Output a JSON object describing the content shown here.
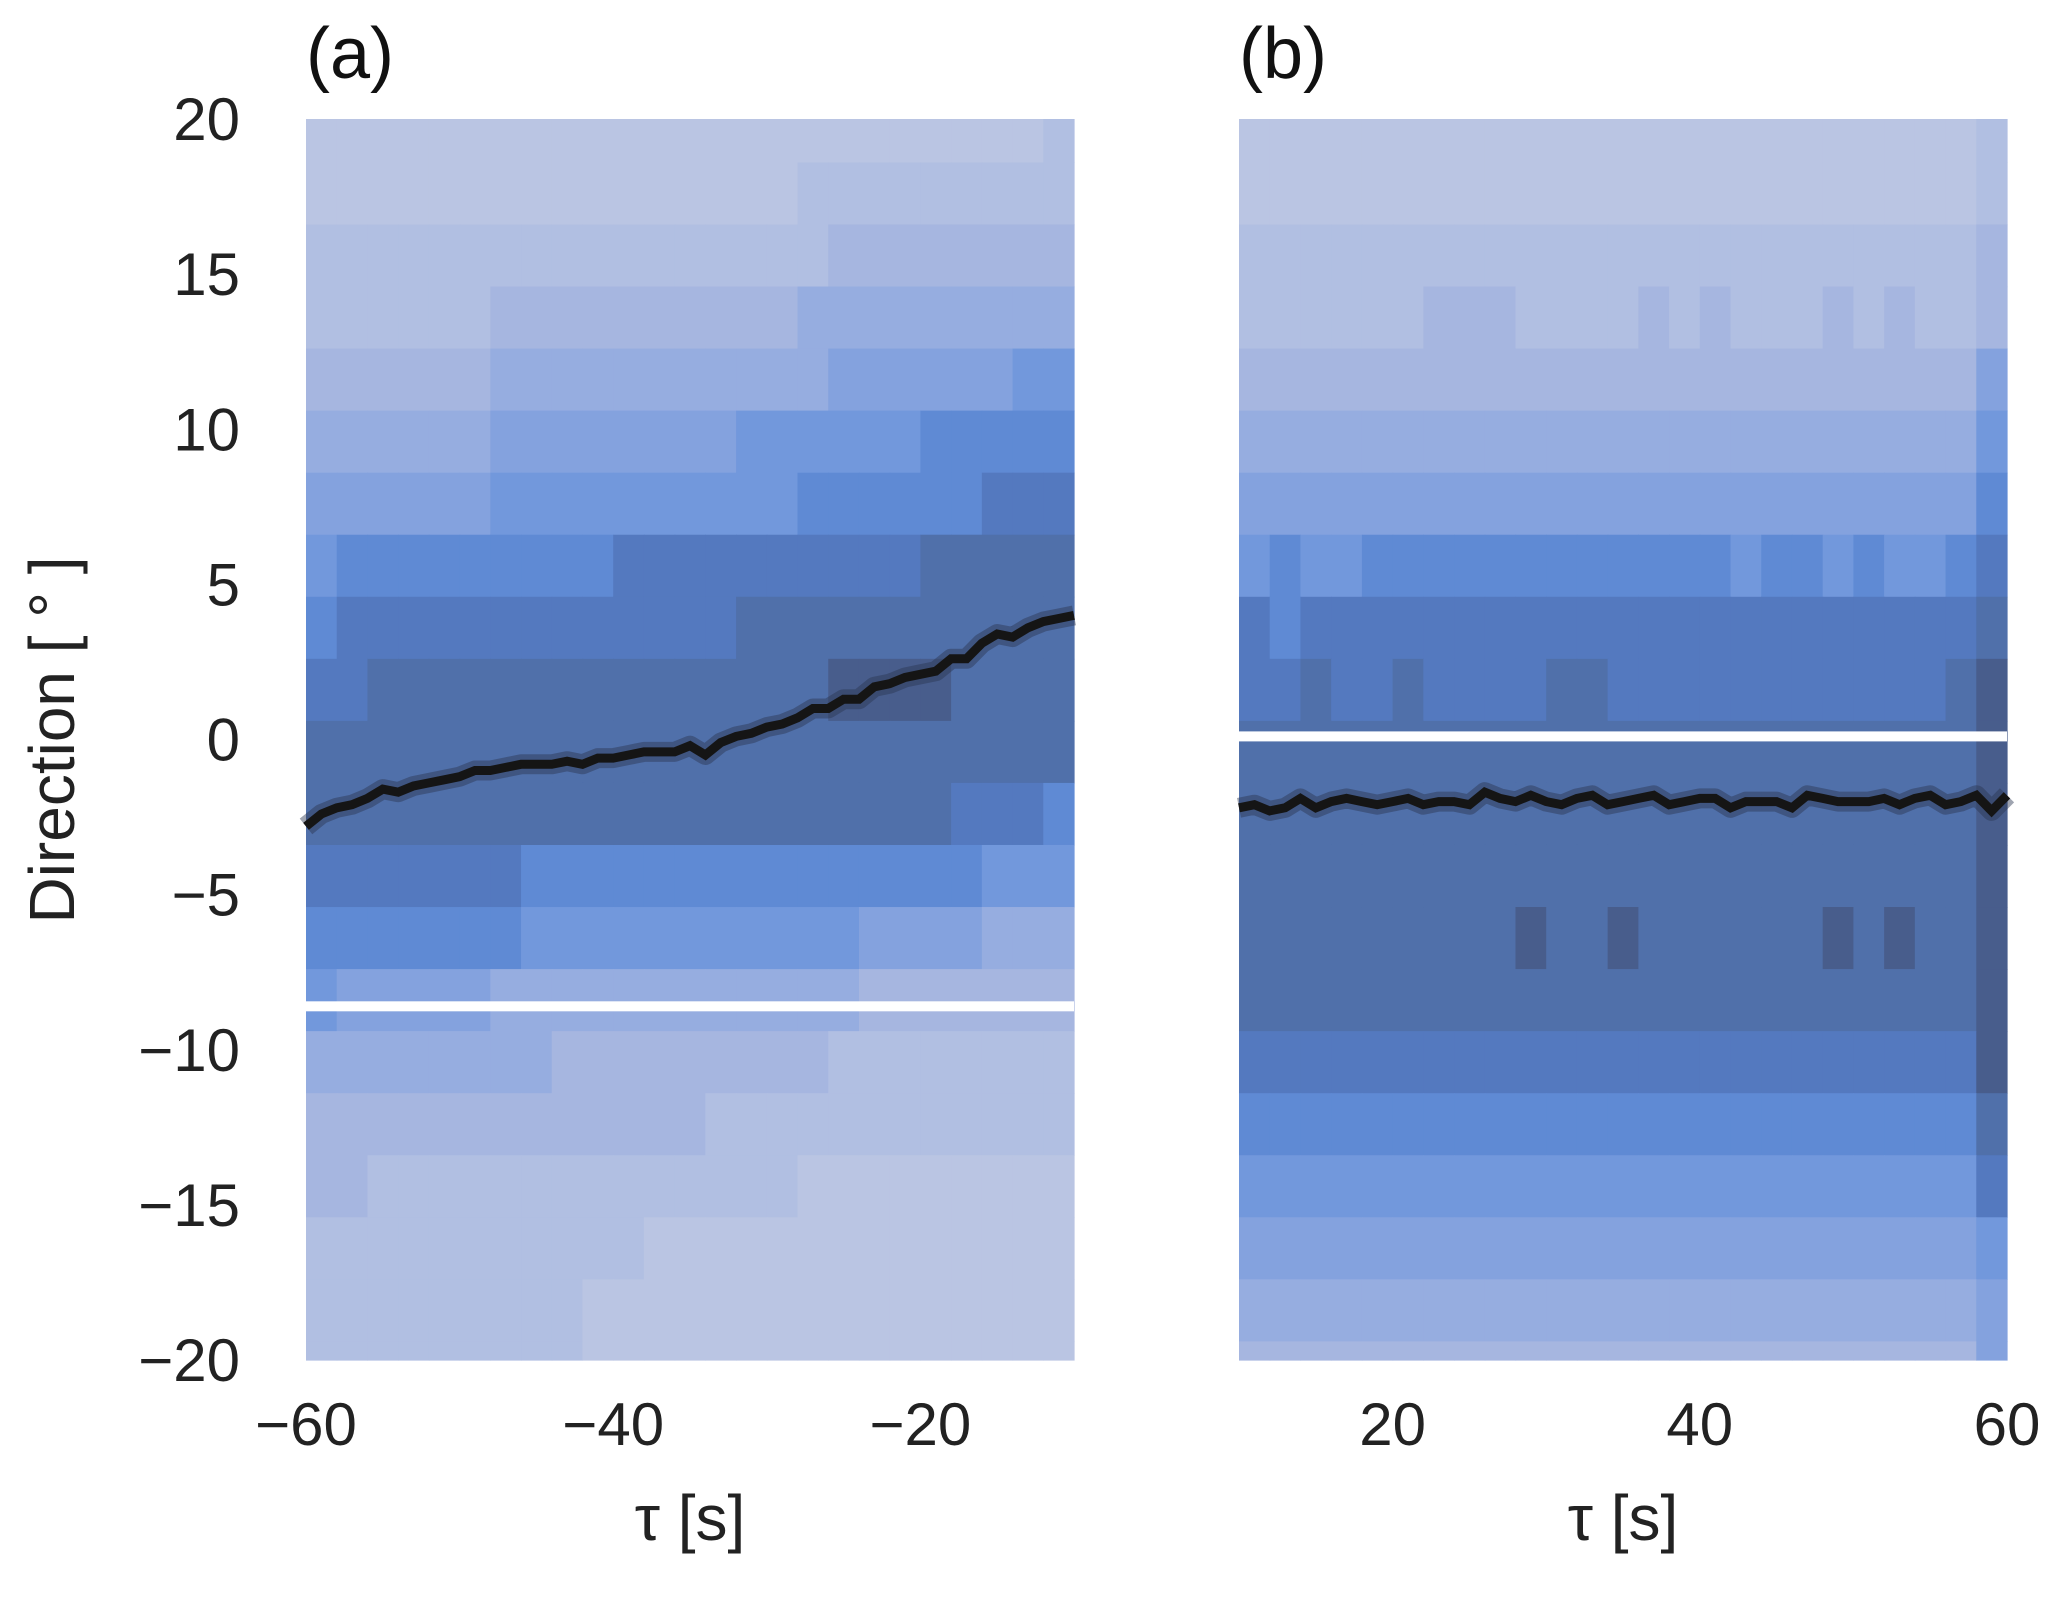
{
  "chart_data": [
    {
      "type": "heatmap",
      "panel_label": "(a)",
      "xlabel": "τ [s]",
      "ylabel": "Direction [ ° ]",
      "xlim": [
        -60,
        -10
      ],
      "ylim": [
        -20,
        20
      ],
      "x_ticks": [
        "−60",
        "−40",
        "−20"
      ],
      "x_tick_values": [
        -60,
        -40,
        -20
      ],
      "y_ticks": [
        "20",
        "15",
        "10",
        "5",
        "0",
        "−5",
        "−10",
        "−15",
        "−20"
      ],
      "y_tick_values": [
        20,
        15,
        10,
        5,
        0,
        -5,
        -10,
        -15,
        -20
      ],
      "grid": false,
      "x_bin_width": 2,
      "y_bin_top_edge": 18.6,
      "y_bin_height": 2,
      "intensity_rows_top_to_bottom": [
        "0000000000000000000000001",
        "0000000000000000111111111",
        "1111111111111111122222222",
        "1111112222222222333333333",
        "2222223333333333344444455",
        "3333334444444455555566666",
        "4444445555555555666666777",
        "5666666666777777777788888",
        "6777777777777788888888888",
        "7788888888888888899998888",
        "8888888888888888888888888",
        "8888888888888888888887776",
        "7777777666666666666666555",
        "6666666555555555554444333",
        "5444443333333333332222222",
        "3333333322222222211111111",
        "2222222222222111111111111",
        "2211111111111111000000000",
        "1111111111100000000000000",
        "1111111110000000000000000",
        "1111111110000000000000000"
      ],
      "separator_y": -8.6,
      "line": {
        "x_start": -60,
        "x_step": 1,
        "y": [
          -2.8,
          -2.4,
          -2.2,
          -2.1,
          -1.9,
          -1.6,
          -1.7,
          -1.5,
          -1.4,
          -1.3,
          -1.2,
          -1.0,
          -1.0,
          -0.9,
          -0.8,
          -0.8,
          -0.8,
          -0.7,
          -0.8,
          -0.6,
          -0.6,
          -0.5,
          -0.4,
          -0.4,
          -0.4,
          -0.2,
          -0.5,
          -0.1,
          0.1,
          0.2,
          0.4,
          0.5,
          0.7,
          1.0,
          1.0,
          1.3,
          1.3,
          1.7,
          1.8,
          2.0,
          2.1,
          2.2,
          2.6,
          2.6,
          3.1,
          3.4,
          3.3,
          3.6,
          3.8,
          3.9,
          4.0
        ]
      }
    },
    {
      "type": "heatmap",
      "panel_label": "(b)",
      "xlabel": "τ [s]",
      "xlim": [
        10,
        60
      ],
      "ylim": [
        -20,
        20
      ],
      "x_ticks": [
        "20",
        "40",
        "60"
      ],
      "x_tick_values": [
        20,
        40,
        60
      ],
      "grid": false,
      "x_bin_width": 2,
      "y_bin_top_edge": 18.6,
      "y_bin_height": 2,
      "intensity_rows_top_to_bottom": [
        "0000000000000000000000001",
        "0000000000000000000000001",
        "1111111111111111111111112",
        "1111112221111212111212112",
        "2222222222222222222222224",
        "3333333333333333333333335",
        "4444444444444444444444446",
        "5655666666666666566565567",
        "7677777777777777777777778",
        "7787787777887777777777789",
        "8888888888888888888888889",
        "8888888888888888888888889",
        "8888888888888888888888889",
        "8888888889889888888989889",
        "8888888888888888888888889",
        "7777777777777777777777779",
        "6666666666666666666666668",
        "5555555555555555555555557",
        "4444444444444444444444445",
        "3333333333333333333333334",
        "2222222222222222222222224"
      ],
      "separator_y": 0.1,
      "line": {
        "x_start": 10,
        "x_step": 1,
        "y": [
          -2.2,
          -2.1,
          -2.3,
          -2.2,
          -1.9,
          -2.2,
          -2.0,
          -1.9,
          -2.0,
          -2.1,
          -2.0,
          -1.9,
          -2.1,
          -2.0,
          -2.0,
          -2.1,
          -1.7,
          -1.9,
          -2.0,
          -1.8,
          -2.0,
          -2.1,
          -1.9,
          -1.8,
          -2.1,
          -2.0,
          -1.9,
          -1.8,
          -2.1,
          -2.0,
          -1.9,
          -1.9,
          -2.2,
          -2.0,
          -2.0,
          -2.0,
          -2.2,
          -1.8,
          -1.9,
          -2.0,
          -2.0,
          -2.0,
          -1.9,
          -2.1,
          -1.9,
          -1.8,
          -2.1,
          -2.0,
          -1.8,
          -2.3,
          -1.8
        ]
      }
    }
  ],
  "colormap": [
    "#bac5e3",
    "#b1bfe2",
    "#a6b6e0",
    "#96ade0",
    "#84a2de",
    "#7298dc",
    "#5f8ad4",
    "#5479bf",
    "#5070aa",
    "#485d8c"
  ],
  "line_color": "#151515"
}
